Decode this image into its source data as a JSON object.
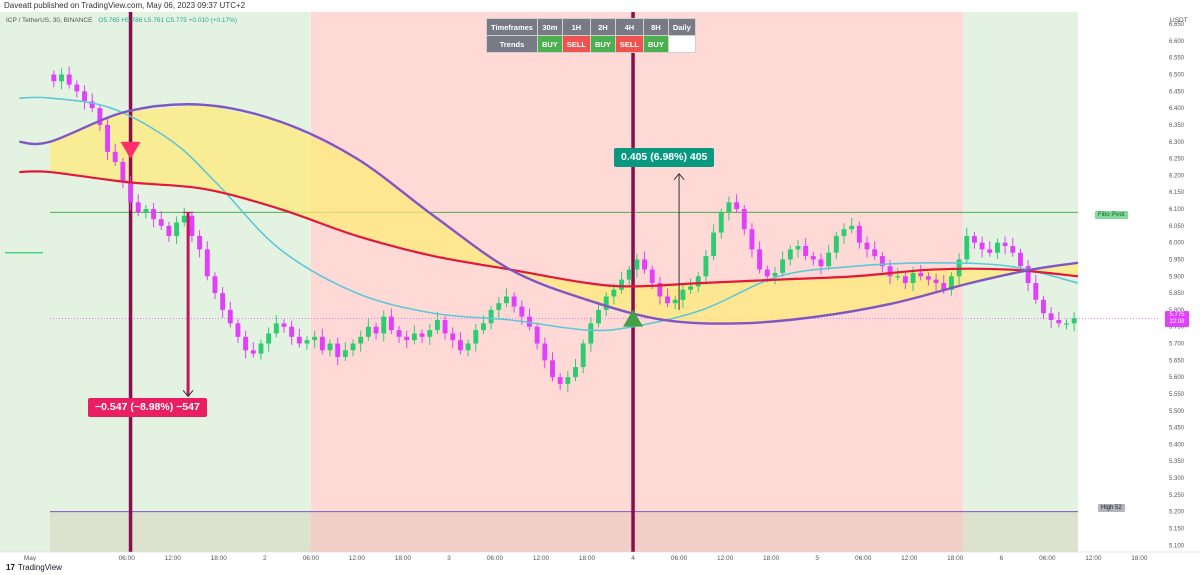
{
  "header": {
    "published_text": "Daveatt published on TradingView.com, May 06, 2023 09:37 UTC+2"
  },
  "legend": {
    "symbol": "ICP / TetherUS, 30, BINANCE",
    "ohlc": "O5.765 H5.786 L5.761 C5.775 +0.010 (+0.17%)"
  },
  "timeframes_table": {
    "header_label": "Timeframes",
    "trend_label": "Trends",
    "timeframes": [
      "30m",
      "1H",
      "2H",
      "4H",
      "8H",
      "Daily"
    ],
    "trends": [
      "BUY",
      "SELL",
      "BUY",
      "SELL",
      "BUY",
      ""
    ]
  },
  "callouts": {
    "up": "0.405 (6.98%) 405",
    "down": "−0.547 (−8.98%) −547"
  },
  "line_labels": {
    "fibo_pivot": "Fibo Pivot",
    "high_52": "High 52"
  },
  "price_box": {
    "price": "5.775",
    "countdown": "22:08"
  },
  "footer": {
    "logo_glyph": "17",
    "brand": "TradingView"
  },
  "colors": {
    "buy_zone": "#e4f2e1",
    "sell_zone": "#ffd9d6",
    "candle_up": "#2ecc71",
    "candle_down": "#e040fb",
    "ma_red": "#e0193c",
    "ma_purple": "#7e57c2",
    "ma_cyan": "#5ec8d8",
    "fill_yellow": "#ffe97a",
    "signal_up": "#43a047",
    "signal_down": "#ff2d6a",
    "vertical_line": "#880e4f"
  },
  "chart_data": {
    "type": "candlestick",
    "title": "ICP / TetherUS, 30, BINANCE",
    "currency_label": "USDT",
    "y_ticks": [
      "6.650",
      "6.600",
      "6.550",
      "6.500",
      "6.450",
      "6.400",
      "6.350",
      "6.300",
      "6.250",
      "6.200",
      "6.150",
      "6.100",
      "6.050",
      "6.000",
      "5.950",
      "5.900",
      "5.850",
      "5.800",
      "5.750",
      "5.700",
      "5.650",
      "5.600",
      "5.550",
      "5.500",
      "5.450",
      "5.400",
      "5.350",
      "5.300",
      "5.250",
      "5.200",
      "5.150",
      "5.100"
    ],
    "ylim": [
      5.08,
      6.68
    ],
    "x_ticks": [
      {
        "label": "May",
        "t": 2.5
      },
      {
        "label": "06:00",
        "t": 10
      },
      {
        "label": "12:00",
        "t": 16
      },
      {
        "label": "18:00",
        "t": 22
      },
      {
        "label": "2",
        "t": 28
      },
      {
        "label": "06:00",
        "t": 34
      },
      {
        "label": "12:00",
        "t": 40
      },
      {
        "label": "18:00",
        "t": 46
      },
      {
        "label": "3",
        "t": 52
      },
      {
        "label": "06:00",
        "t": 58
      },
      {
        "label": "12:00",
        "t": 64
      },
      {
        "label": "18:00",
        "t": 70
      },
      {
        "label": "4",
        "t": 76
      },
      {
        "label": "06:00",
        "t": 82
      },
      {
        "label": "12:00",
        "t": 88
      },
      {
        "label": "18:00",
        "t": 94
      },
      {
        "label": "5",
        "t": 100
      },
      {
        "label": "06:00",
        "t": 106
      },
      {
        "label": "12:00",
        "t": 112
      },
      {
        "label": "18:00",
        "t": 118
      },
      {
        "label": "6",
        "t": 124
      },
      {
        "label": "06:00",
        "t": 130
      },
      {
        "label": "12:00",
        "t": 136
      },
      {
        "label": "18:00",
        "t": 142
      }
    ],
    "zones": [
      {
        "from_hour": 0,
        "to_hour": 34,
        "trend": "buy"
      },
      {
        "from_hour": 34,
        "to_hour": 119,
        "trend": "sell"
      },
      {
        "from_hour": 119,
        "to_hour": 134,
        "trend": "buy"
      }
    ],
    "closes": [
      6.48,
      6.5,
      6.47,
      6.45,
      6.42,
      6.4,
      6.35,
      6.27,
      6.24,
      6.18,
      6.12,
      6.09,
      6.1,
      6.07,
      6.05,
      6.02,
      6.06,
      6.08,
      6.02,
      5.98,
      5.9,
      5.85,
      5.8,
      5.76,
      5.72,
      5.68,
      5.67,
      5.7,
      5.73,
      5.76,
      5.75,
      5.72,
      5.7,
      5.71,
      5.72,
      5.68,
      5.7,
      5.66,
      5.68,
      5.7,
      5.72,
      5.75,
      5.73,
      5.78,
      5.74,
      5.72,
      5.71,
      5.73,
      5.72,
      5.74,
      5.77,
      5.73,
      5.71,
      5.68,
      5.7,
      5.74,
      5.76,
      5.8,
      5.82,
      5.84,
      5.81,
      5.78,
      5.75,
      5.7,
      5.65,
      5.6,
      5.58,
      5.6,
      5.63,
      5.7,
      5.76,
      5.8,
      5.84,
      5.86,
      5.89,
      5.92,
      5.95,
      5.92,
      5.88,
      5.84,
      5.82,
      5.83,
      5.86,
      5.87,
      5.9,
      5.96,
      6.03,
      6.09,
      6.12,
      6.1,
      6.04,
      5.98,
      5.92,
      5.9,
      5.91,
      5.95,
      5.98,
      5.99,
      5.96,
      5.95,
      5.93,
      5.97,
      6.02,
      6.04,
      6.05,
      6.0,
      5.98,
      5.96,
      5.93,
      5.9,
      5.9,
      5.88,
      5.91,
      5.9,
      5.89,
      5.88,
      5.86,
      5.9,
      5.95,
      6.02,
      6.0,
      5.98,
      5.97,
      6.0,
      5.99,
      5.97,
      5.93,
      5.88,
      5.83,
      5.79,
      5.77,
      5.76,
      5.76,
      5.775
    ],
    "ma_red": [
      {
        "t": 0,
        "v": 6.21
      },
      {
        "t": 10,
        "v": 6.18
      },
      {
        "t": 20,
        "v": 6.16
      },
      {
        "t": 30,
        "v": 6.1
      },
      {
        "t": 40,
        "v": 6.02
      },
      {
        "t": 50,
        "v": 5.96
      },
      {
        "t": 60,
        "v": 5.92
      },
      {
        "t": 70,
        "v": 5.88
      },
      {
        "t": 76,
        "v": 5.87
      },
      {
        "t": 85,
        "v": 5.88
      },
      {
        "t": 95,
        "v": 5.89
      },
      {
        "t": 105,
        "v": 5.9
      },
      {
        "t": 115,
        "v": 5.92
      },
      {
        "t": 125,
        "v": 5.92
      },
      {
        "t": 134,
        "v": 5.9
      }
    ],
    "ma_purple": [
      {
        "t": 0,
        "v": 6.3
      },
      {
        "t": 10,
        "v": 6.39
      },
      {
        "t": 20,
        "v": 6.41
      },
      {
        "t": 30,
        "v": 6.36
      },
      {
        "t": 40,
        "v": 6.25
      },
      {
        "t": 50,
        "v": 6.08
      },
      {
        "t": 60,
        "v": 5.92
      },
      {
        "t": 70,
        "v": 5.83
      },
      {
        "t": 80,
        "v": 5.77
      },
      {
        "t": 90,
        "v": 5.76
      },
      {
        "t": 100,
        "v": 5.78
      },
      {
        "t": 110,
        "v": 5.82
      },
      {
        "t": 120,
        "v": 5.88
      },
      {
        "t": 128,
        "v": 5.92
      },
      {
        "t": 134,
        "v": 5.94
      }
    ],
    "ma_cyan": [
      {
        "t": 0,
        "v": 6.43
      },
      {
        "t": 8,
        "v": 6.4
      },
      {
        "t": 16,
        "v": 6.3
      },
      {
        "t": 22,
        "v": 6.17
      },
      {
        "t": 30,
        "v": 5.98
      },
      {
        "t": 40,
        "v": 5.85
      },
      {
        "t": 50,
        "v": 5.79
      },
      {
        "t": 60,
        "v": 5.77
      },
      {
        "t": 70,
        "v": 5.74
      },
      {
        "t": 76,
        "v": 5.75
      },
      {
        "t": 85,
        "v": 5.8
      },
      {
        "t": 95,
        "v": 5.9
      },
      {
        "t": 105,
        "v": 5.93
      },
      {
        "t": 115,
        "v": 5.94
      },
      {
        "t": 125,
        "v": 5.93
      },
      {
        "t": 134,
        "v": 5.88
      }
    ],
    "fibo_pivot": 6.09,
    "high_52": 5.2,
    "short_line": {
      "t0": 0,
      "t1": 5,
      "v": 5.97
    },
    "signals": [
      {
        "t": 10.5,
        "price": 6.27,
        "dir": "down"
      },
      {
        "t": 76,
        "price": 5.78,
        "dir": "up"
      }
    ],
    "vertical_lines": [
      10.5,
      76
    ],
    "measure_up": {
      "t": 82,
      "from": 5.8,
      "to": 6.205
    },
    "measure_down": {
      "t": 18,
      "from": 6.09,
      "to": 5.543
    }
  }
}
